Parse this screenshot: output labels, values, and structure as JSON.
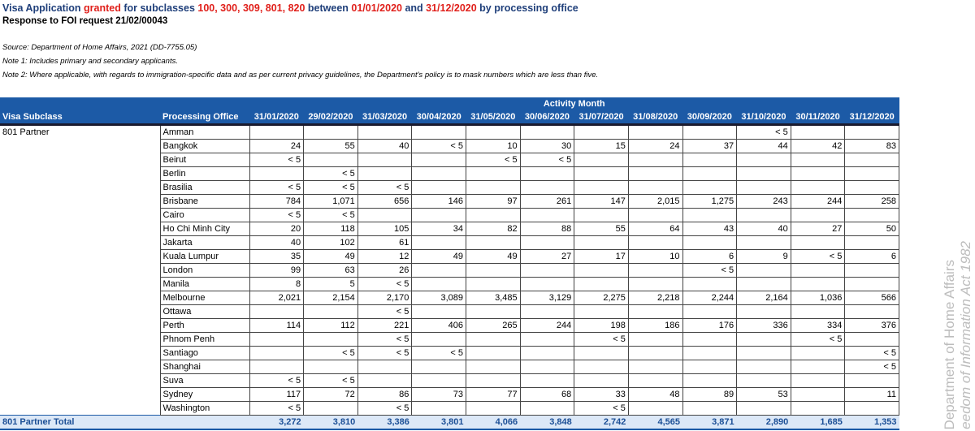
{
  "header": {
    "title": [
      "Visa Application ",
      "granted",
      " for subclasses ",
      "100, 300, 309, 801, 820",
      " between ",
      "01/01/2020",
      " and ",
      "31/12/2020",
      " by processing office"
    ],
    "subtitle": "Response to FOI request 21/02/00043"
  },
  "notes": [
    "Source: Department of Home Affairs, 2021 (DD-7755.05)",
    "Note 1: Includes primary and secondary applicants.",
    "Note 2: Where applicable, with regards to immigration-specific data and as per current privacy guidelines, the Department's policy is to mask numbers which are less than five."
  ],
  "table": {
    "group_header": "Activity Month",
    "columns": [
      "Visa Subclass",
      "Processing Office",
      "31/01/2020",
      "29/02/2020",
      "31/03/2020",
      "30/04/2020",
      "31/05/2020",
      "30/06/2020",
      "31/07/2020",
      "31/08/2020",
      "30/09/2020",
      "31/10/2020",
      "30/11/2020",
      "31/12/2020"
    ],
    "subclass": "801 Partner",
    "rows": [
      [
        "Amman",
        null,
        null,
        null,
        null,
        null,
        null,
        null,
        null,
        null,
        "< 5",
        null,
        null
      ],
      [
        "Bangkok",
        "24",
        "55",
        "40",
        "< 5",
        "10",
        "30",
        "15",
        "24",
        "37",
        "44",
        "42",
        "83"
      ],
      [
        "Beirut",
        "< 5",
        null,
        null,
        null,
        "< 5",
        "< 5",
        null,
        null,
        null,
        null,
        null,
        null
      ],
      [
        "Berlin",
        null,
        "< 5",
        null,
        null,
        null,
        null,
        null,
        null,
        null,
        null,
        null,
        null
      ],
      [
        "Brasilia",
        "< 5",
        "< 5",
        "< 5",
        null,
        null,
        null,
        null,
        null,
        null,
        null,
        null,
        null
      ],
      [
        "Brisbane",
        "784",
        "1,071",
        "656",
        "146",
        "97",
        "261",
        "147",
        "2,015",
        "1,275",
        "243",
        "244",
        "258"
      ],
      [
        "Cairo",
        "< 5",
        "< 5",
        null,
        null,
        null,
        null,
        null,
        null,
        null,
        null,
        null,
        null
      ],
      [
        "Ho Chi Minh City",
        "20",
        "118",
        "105",
        "34",
        "82",
        "88",
        "55",
        "64",
        "43",
        "40",
        "27",
        "50"
      ],
      [
        "Jakarta",
        "40",
        "102",
        "61",
        null,
        null,
        null,
        null,
        null,
        null,
        null,
        null,
        null
      ],
      [
        "Kuala Lumpur",
        "35",
        "49",
        "12",
        "49",
        "49",
        "27",
        "17",
        "10",
        "6",
        "9",
        "< 5",
        "6"
      ],
      [
        "London",
        "99",
        "63",
        "26",
        null,
        null,
        null,
        null,
        null,
        "< 5",
        null,
        null,
        null
      ],
      [
        "Manila",
        "8",
        "5",
        "< 5",
        null,
        null,
        null,
        null,
        null,
        null,
        null,
        null,
        null
      ],
      [
        "Melbourne",
        "2,021",
        "2,154",
        "2,170",
        "3,089",
        "3,485",
        "3,129",
        "2,275",
        "2,218",
        "2,244",
        "2,164",
        "1,036",
        "566"
      ],
      [
        "Ottawa",
        null,
        null,
        "< 5",
        null,
        null,
        null,
        null,
        null,
        null,
        null,
        null,
        null
      ],
      [
        "Perth",
        "114",
        "112",
        "221",
        "406",
        "265",
        "244",
        "198",
        "186",
        "176",
        "336",
        "334",
        "376"
      ],
      [
        "Phnom Penh",
        null,
        null,
        "< 5",
        null,
        null,
        null,
        "< 5",
        null,
        null,
        null,
        "< 5",
        null
      ],
      [
        "Santiago",
        null,
        "< 5",
        "< 5",
        "< 5",
        null,
        null,
        null,
        null,
        null,
        null,
        null,
        "< 5"
      ],
      [
        "Shanghai",
        null,
        null,
        null,
        null,
        null,
        null,
        null,
        null,
        null,
        null,
        null,
        "< 5"
      ],
      [
        "Suva",
        "< 5",
        "< 5",
        null,
        null,
        null,
        null,
        null,
        null,
        null,
        null,
        null,
        null
      ],
      [
        "Sydney",
        "117",
        "72",
        "86",
        "73",
        "77",
        "68",
        "33",
        "48",
        "89",
        "53",
        null,
        "11"
      ],
      [
        "Washington",
        "< 5",
        null,
        "< 5",
        null,
        null,
        null,
        "< 5",
        null,
        null,
        null,
        null,
        null
      ]
    ],
    "total_label": "801 Partner Total",
    "totals": [
      "3,272",
      "3,810",
      "3,386",
      "3,801",
      "4,066",
      "3,848",
      "2,742",
      "4,565",
      "3,871",
      "2,890",
      "1,685",
      "1,353"
    ]
  },
  "watermark": [
    "Department of Home Affairs",
    "eedom of Information Act 1982"
  ]
}
